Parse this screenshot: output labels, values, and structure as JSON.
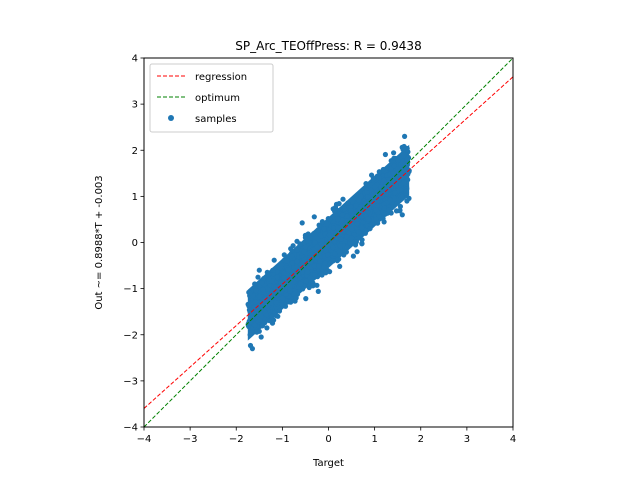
{
  "chart_data": {
    "type": "scatter",
    "title": "SP_Arc_TEOffPress: R = 0.9438",
    "xlabel": "Target",
    "ylabel": "Out ~= 0.8988*T + -0.003",
    "xlim": [
      -4,
      4
    ],
    "ylim": [
      -4,
      4
    ],
    "xticks": [
      "−4",
      "−3",
      "−2",
      "−1",
      "0",
      "1",
      "2",
      "3",
      "4"
    ],
    "yticks": [
      "−4",
      "−3",
      "−2",
      "−1",
      "0",
      "1",
      "2",
      "3",
      "4"
    ],
    "grid": false,
    "legend_position": "top-left",
    "series": [
      {
        "name": "regression",
        "kind": "line",
        "style": "dashed",
        "color": "#ff0000",
        "slope": 0.8988,
        "intercept": -0.003,
        "x": [
          -4,
          4
        ],
        "y": [
          -3.598,
          3.592
        ]
      },
      {
        "name": "optimum",
        "kind": "line",
        "style": "dashed",
        "color": "#008000",
        "slope": 1,
        "intercept": 0,
        "x": [
          -4,
          4
        ],
        "y": [
          -4,
          4
        ]
      },
      {
        "name": "samples",
        "kind": "scatter",
        "color": "#1f77b4",
        "x_range": [
          -1.75,
          1.75
        ],
        "y_range": [
          -2.3,
          2.3
        ],
        "x": [
          -1.7,
          -1.65,
          -1.5,
          -1.3,
          -1.1,
          -0.9,
          -0.7,
          -0.5,
          -0.3,
          -0.1,
          0.1,
          0.3,
          0.5,
          0.7,
          0.9,
          1.1,
          1.3,
          1.5,
          1.65,
          1.7,
          -1.7,
          -1.6,
          -1.4,
          -1.2,
          -1.0,
          -0.8,
          -0.6,
          -0.4,
          -0.2,
          0.0,
          0.2,
          0.4,
          0.6,
          0.8,
          1.0,
          1.2,
          1.4,
          1.6,
          1.7,
          1.6
        ],
        "y": [
          -1.1,
          -2.3,
          -0.6,
          -0.7,
          -1.6,
          -0.4,
          -1.2,
          -0.1,
          -0.7,
          0.3,
          -0.4,
          0.6,
          0.1,
          1.0,
          0.3,
          1.4,
          0.7,
          1.6,
          2.3,
          0.9,
          -2.0,
          -0.9,
          -1.4,
          -0.6,
          -1.2,
          -0.3,
          -0.9,
          0.1,
          -0.5,
          0.0,
          0.5,
          -0.1,
          0.8,
          0.2,
          1.2,
          0.6,
          1.5,
          1.0,
          1.8,
          0.6
        ]
      }
    ]
  }
}
